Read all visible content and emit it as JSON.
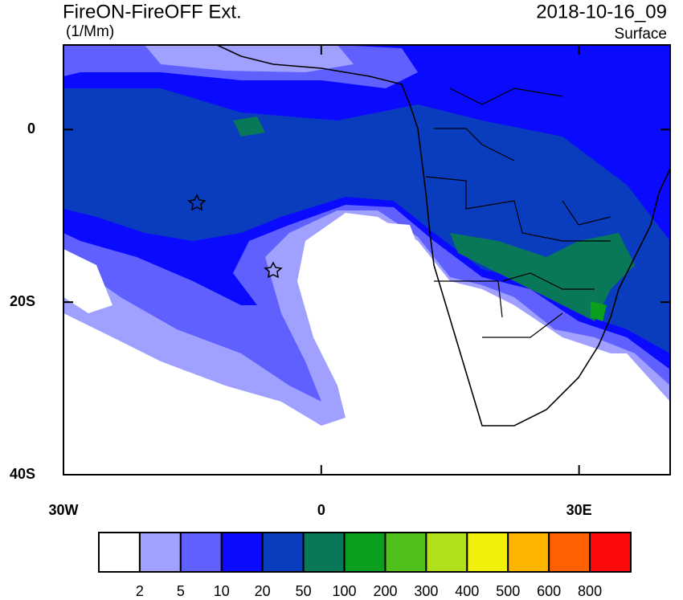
{
  "header": {
    "title": "FireON-FireOFF Ext.",
    "units": "(1/Mm)",
    "date": "2018-10-16_09",
    "level": "Surface"
  },
  "map": {
    "xlim": [
      -30,
      40.6
    ],
    "ylim": [
      -40,
      9.8
    ],
    "xticks": [
      {
        "value": -30,
        "label": "30W"
      },
      0,
      {
        "value": 30,
        "label": "30E"
      }
    ],
    "yticks": [
      0,
      {
        "value": -20,
        "label": "20S"
      },
      {
        "value": -40,
        "label": "40S"
      }
    ]
  },
  "colorbar": {
    "levels": [
      2,
      5,
      10,
      20,
      50,
      100,
      200,
      300,
      400,
      500,
      600,
      800
    ],
    "colors": [
      "#ffffff",
      "#a0a0ff",
      "#6060ff",
      "#0a0aff",
      "#0a3cbe",
      "#087858",
      "#0aa01e",
      "#50c01a",
      "#b0e01a",
      "#f0f00a",
      "#ffb400",
      "#ff6000",
      "#ff0a0a"
    ]
  }
}
